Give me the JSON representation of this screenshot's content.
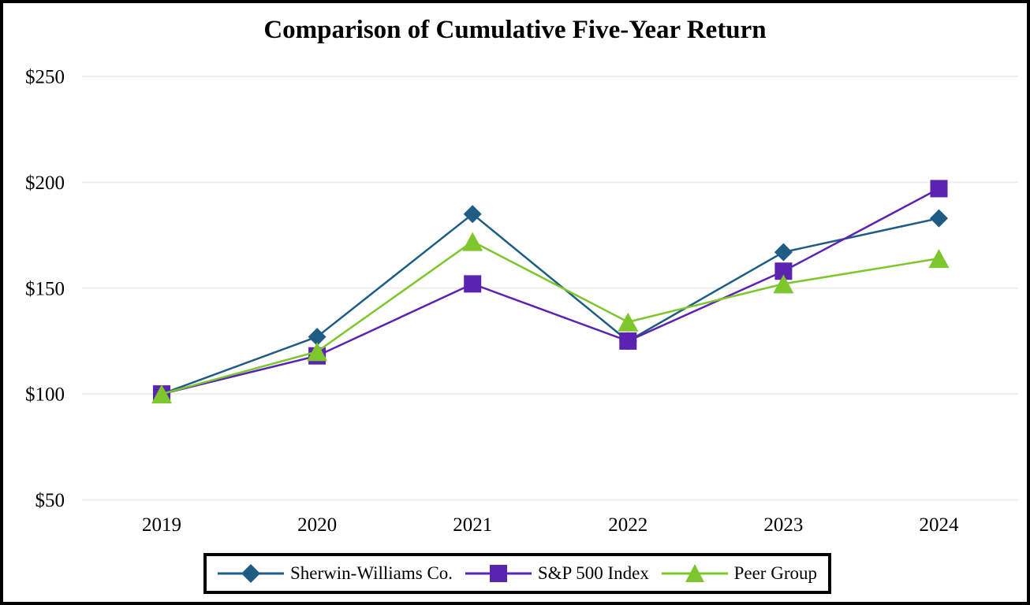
{
  "title": "Comparison of Cumulative Five-Year Return",
  "colors": {
    "sherwin_blue": "#1E5C83",
    "sp500_purple": "#5A23B0",
    "peer_green": "#7DC62C",
    "gridline_gray": "#EDEDED",
    "frame_black": "#000000",
    "background": "#FFFFFF"
  },
  "chart_data": {
    "type": "line",
    "title": "Comparison of Cumulative Five-Year Return",
    "categories": [
      "2019",
      "2020",
      "2021",
      "2022",
      "2023",
      "2024"
    ],
    "series": [
      {
        "name": "Sherwin-Williams Co.",
        "marker": "diamond",
        "color": "#1E5C83",
        "values": [
          100,
          127,
          185,
          125,
          167,
          183
        ]
      },
      {
        "name": "S&P 500 Index",
        "marker": "square",
        "color": "#5A23B0",
        "values": [
          100,
          118,
          152,
          125,
          158,
          197
        ]
      },
      {
        "name": "Peer Group",
        "marker": "triangle",
        "color": "#7DC62C",
        "values": [
          100,
          120,
          172,
          134,
          152,
          164
        ]
      }
    ],
    "ylim": [
      50,
      250
    ],
    "ytick_step": 50,
    "ytick_labels": [
      "$50",
      "$100",
      "$150",
      "$200",
      "$250"
    ],
    "ytick_prefix": "$",
    "grid": true,
    "legend_position": "bottom",
    "legend_order": [
      "Sherwin-Williams Co.",
      "S&P 500 Index",
      "Peer Group"
    ]
  }
}
